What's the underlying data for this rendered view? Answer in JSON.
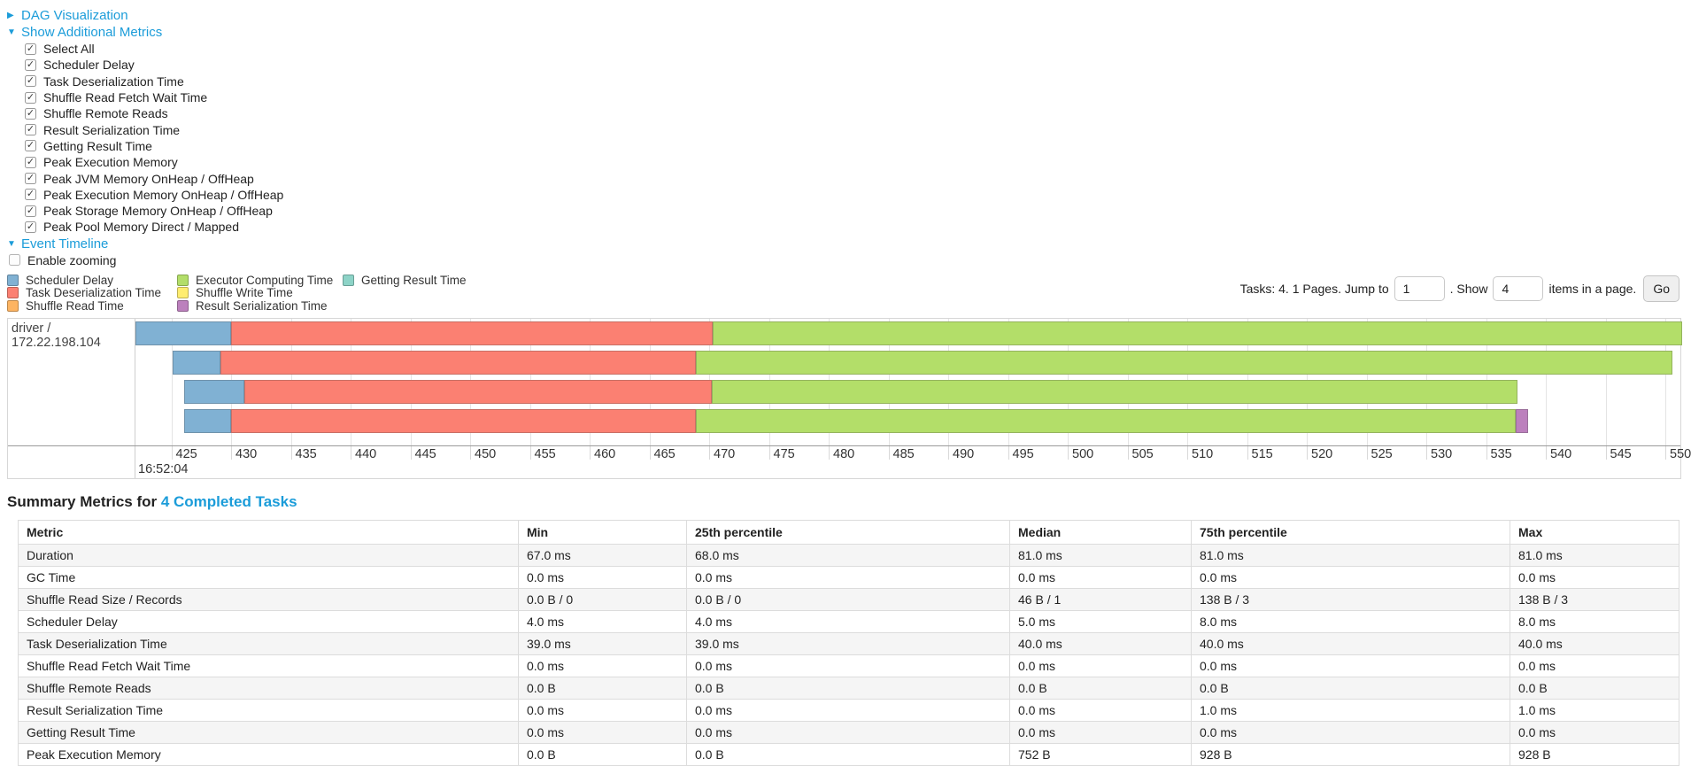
{
  "toggles": {
    "dag": {
      "label": "DAG Visualization",
      "caret": "▶"
    },
    "metrics": {
      "label": "Show Additional Metrics",
      "caret": "▼"
    },
    "event_timeline": {
      "label": "Event Timeline",
      "caret": "▼"
    }
  },
  "metric_checkboxes": [
    {
      "label": "Select All",
      "checked": true
    },
    {
      "label": "Scheduler Delay",
      "checked": true
    },
    {
      "label": "Task Deserialization Time",
      "checked": true
    },
    {
      "label": "Shuffle Read Fetch Wait Time",
      "checked": true
    },
    {
      "label": "Shuffle Remote Reads",
      "checked": true
    },
    {
      "label": "Result Serialization Time",
      "checked": true
    },
    {
      "label": "Getting Result Time",
      "checked": true
    },
    {
      "label": "Peak Execution Memory",
      "checked": true
    },
    {
      "label": "Peak JVM Memory OnHeap / OffHeap",
      "checked": true
    },
    {
      "label": "Peak Execution Memory OnHeap / OffHeap",
      "checked": true
    },
    {
      "label": "Peak Storage Memory OnHeap / OffHeap",
      "checked": true
    },
    {
      "label": "Peak Pool Memory Direct / Mapped",
      "checked": true
    }
  ],
  "enable_zooming": {
    "label": "Enable zooming",
    "checked": false
  },
  "legend": {
    "columns": [
      [
        {
          "label": "Scheduler Delay",
          "color": "#80B1D3"
        },
        {
          "label": "Task Deserialization Time",
          "color": "#FB8072"
        },
        {
          "label": "Shuffle Read Time",
          "color": "#FDB462"
        }
      ],
      [
        {
          "label": "Executor Computing Time",
          "color": "#B3DE69"
        },
        {
          "label": "Shuffle Write Time",
          "color": "#FFED6F"
        },
        {
          "label": "Result Serialization Time",
          "color": "#BC80BD"
        }
      ],
      [
        {
          "label": "Getting Result Time",
          "color": "#8DD3C7"
        }
      ]
    ]
  },
  "pager": {
    "prefix": "Tasks: 4. 1 Pages. Jump to",
    "jump_value": "1",
    "between": ". Show",
    "show_value": "4",
    "suffix": "items in a page.",
    "go_label": "Go"
  },
  "chart_data": {
    "type": "bar",
    "subtype": "horizontal-stacked-timeline",
    "group_label": "driver / 172.22.198.104",
    "x_axis": {
      "major_label": "16:52:04",
      "unit": "ms within second 16:52:04",
      "tick_start": 425,
      "tick_end": 550,
      "tick_step": 5,
      "visible_range": [
        422.0,
        551.4
      ],
      "grid": true
    },
    "segment_colors": {
      "scheduler_delay": "#80B1D3",
      "task_deserialization": "#FB8072",
      "shuffle_read": "#FDB462",
      "executor_computing": "#B3DE69",
      "shuffle_write": "#FFED6F",
      "result_serialization": "#BC80BD",
      "getting_result": "#8DD3C7"
    },
    "tasks": [
      {
        "segments": [
          {
            "name": "scheduler_delay",
            "from": 422.0,
            "to": 430.0
          },
          {
            "name": "task_deserialization",
            "from": 430.0,
            "to": 470.3
          },
          {
            "name": "executor_computing",
            "from": 470.3,
            "to": 551.4
          }
        ]
      },
      {
        "segments": [
          {
            "name": "scheduler_delay",
            "from": 425.1,
            "to": 429.1
          },
          {
            "name": "task_deserialization",
            "from": 429.1,
            "to": 468.9
          },
          {
            "name": "executor_computing",
            "from": 468.9,
            "to": 550.6
          }
        ]
      },
      {
        "segments": [
          {
            "name": "scheduler_delay",
            "from": 426.1,
            "to": 431.1
          },
          {
            "name": "task_deserialization",
            "from": 431.1,
            "to": 470.2
          },
          {
            "name": "executor_computing",
            "from": 470.2,
            "to": 537.6
          }
        ]
      },
      {
        "segments": [
          {
            "name": "scheduler_delay",
            "from": 426.1,
            "to": 430.0
          },
          {
            "name": "task_deserialization",
            "from": 430.0,
            "to": 468.9
          },
          {
            "name": "executor_computing",
            "from": 468.9,
            "to": 537.5
          },
          {
            "name": "result_serialization",
            "from": 537.5,
            "to": 538.5
          }
        ]
      }
    ]
  },
  "summary": {
    "title_prefix": "Summary Metrics for ",
    "title_link": "4 Completed Tasks",
    "columns": [
      "Metric",
      "Min",
      "25th percentile",
      "Median",
      "75th percentile",
      "Max"
    ],
    "rows": [
      {
        "metric": "Duration",
        "values": [
          "67.0 ms",
          "68.0 ms",
          "81.0 ms",
          "81.0 ms",
          "81.0 ms"
        ]
      },
      {
        "metric": "GC Time",
        "values": [
          "0.0 ms",
          "0.0 ms",
          "0.0 ms",
          "0.0 ms",
          "0.0 ms"
        ]
      },
      {
        "metric": "Shuffle Read Size / Records",
        "values": [
          "0.0 B / 0",
          "0.0 B / 0",
          "46 B / 1",
          "138 B / 3",
          "138 B / 3"
        ]
      },
      {
        "metric": "Scheduler Delay",
        "values": [
          "4.0 ms",
          "4.0 ms",
          "5.0 ms",
          "8.0 ms",
          "8.0 ms"
        ]
      },
      {
        "metric": "Task Deserialization Time",
        "values": [
          "39.0 ms",
          "39.0 ms",
          "40.0 ms",
          "40.0 ms",
          "40.0 ms"
        ]
      },
      {
        "metric": "Shuffle Read Fetch Wait Time",
        "values": [
          "0.0 ms",
          "0.0 ms",
          "0.0 ms",
          "0.0 ms",
          "0.0 ms"
        ]
      },
      {
        "metric": "Shuffle Remote Reads",
        "values": [
          "0.0 B",
          "0.0 B",
          "0.0 B",
          "0.0 B",
          "0.0 B"
        ]
      },
      {
        "metric": "Result Serialization Time",
        "values": [
          "0.0 ms",
          "0.0 ms",
          "0.0 ms",
          "1.0 ms",
          "1.0 ms"
        ]
      },
      {
        "metric": "Getting Result Time",
        "values": [
          "0.0 ms",
          "0.0 ms",
          "0.0 ms",
          "0.0 ms",
          "0.0 ms"
        ]
      },
      {
        "metric": "Peak Execution Memory",
        "values": [
          "0.0 B",
          "0.0 B",
          "752 B",
          "928 B",
          "928 B"
        ]
      }
    ]
  }
}
